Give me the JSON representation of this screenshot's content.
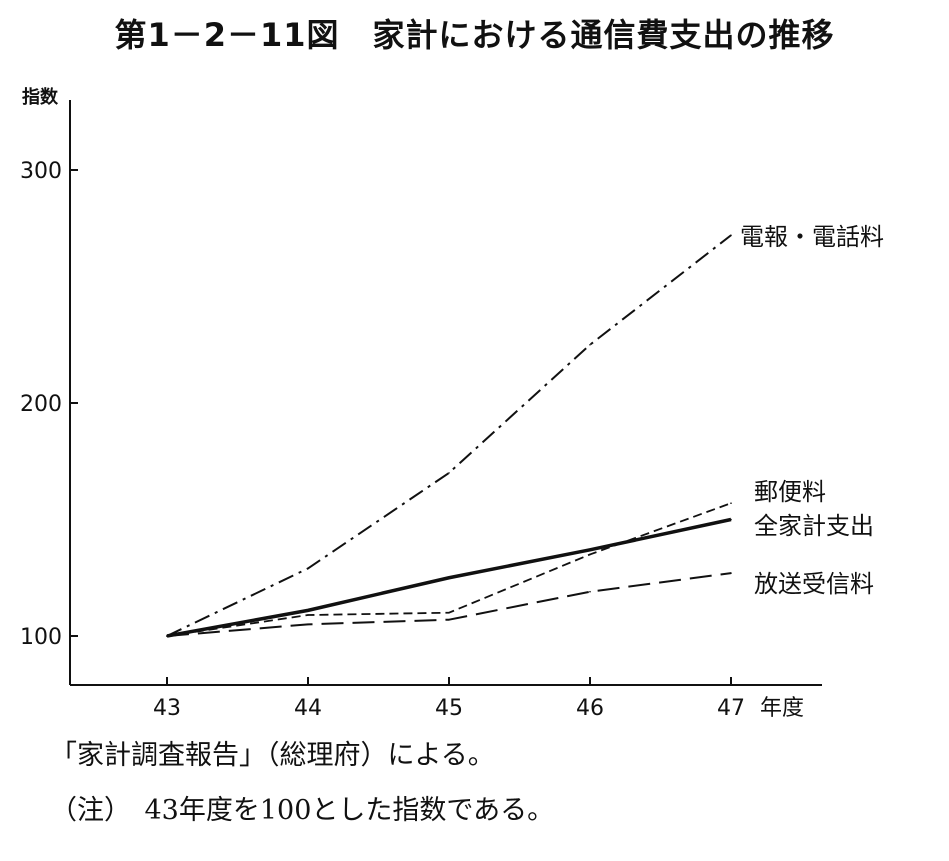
{
  "title": "第1－2－11図　家計における通信費支出の推移",
  "source_note": "「家計調査報告」（総理府）による。",
  "footnote": "（注）　43年度を100とした指数である。",
  "chart_data": {
    "type": "line",
    "ylabel": "指数",
    "xlabel": "年度",
    "x": [
      "43",
      "44",
      "45",
      "46",
      "47"
    ],
    "y_ticks": [
      "100",
      "200",
      "300"
    ],
    "ylim": [
      82,
      330
    ],
    "grid": false,
    "series": [
      {
        "name": "電報・電話料",
        "style": "dash-dot",
        "values": [
          100,
          129,
          170,
          225,
          272
        ]
      },
      {
        "name": "郵便料",
        "style": "short-dash",
        "values": [
          100,
          109,
          110,
          135,
          157
        ]
      },
      {
        "name": "全家計支出",
        "style": "solid-thick",
        "values": [
          100,
          111,
          125,
          137,
          150
        ]
      },
      {
        "name": "放送受信料",
        "style": "long-dash",
        "values": [
          100,
          105,
          107,
          119,
          127
        ]
      }
    ],
    "colors": {
      "line": "#111111",
      "background": "#ffffff"
    }
  }
}
